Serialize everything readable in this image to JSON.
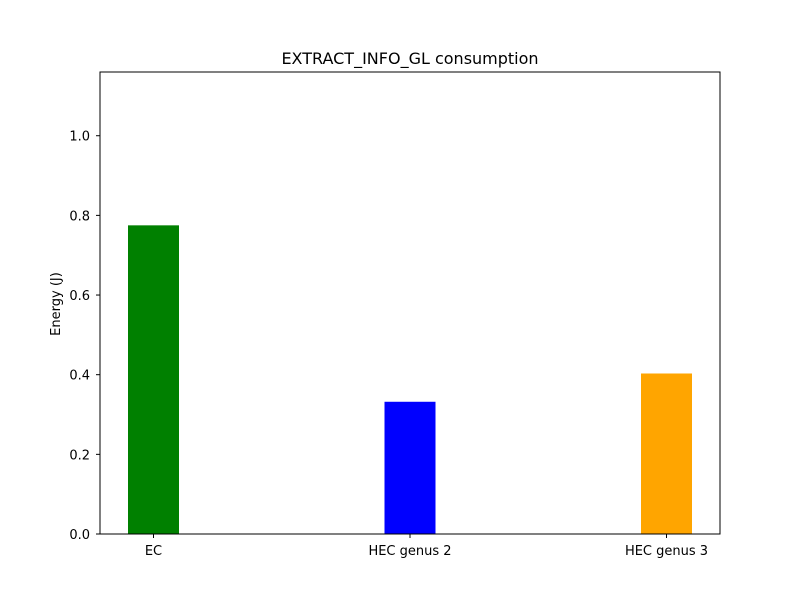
{
  "chart_data": {
    "type": "bar",
    "title": "EXTRACT_INFO_GL consumption",
    "xlabel": "",
    "ylabel": "Energy (J)",
    "categories": [
      "EC",
      "HEC genus 2",
      "HEC genus 3"
    ],
    "values": [
      0.775,
      0.332,
      0.403
    ],
    "colors": [
      "#008000",
      "#0000ff",
      "#ffa500"
    ],
    "ylim": [
      0,
      1.16
    ],
    "yticks": [
      "0.0",
      "0.2",
      "0.4",
      "0.6",
      "0.8",
      "1.0"
    ],
    "grid": false,
    "legend": "none"
  }
}
